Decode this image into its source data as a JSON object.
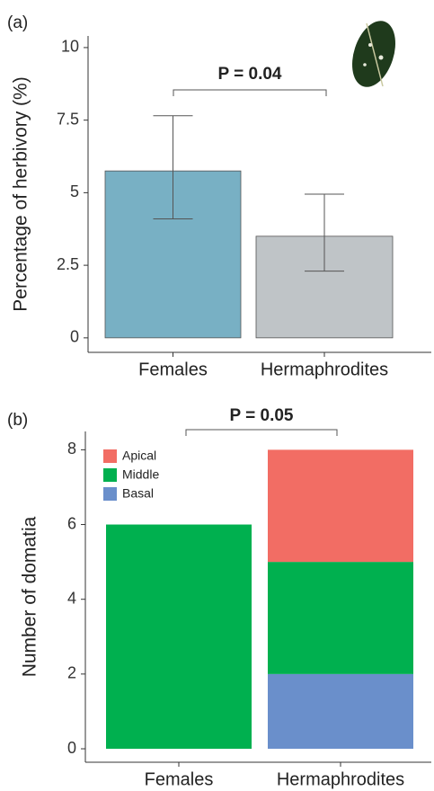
{
  "chart_data": [
    {
      "type": "bar",
      "panel_label": "(a)",
      "y_label": "Percentage of herbivory (%)",
      "categories": [
        "Females",
        "Hermaphrodites"
      ],
      "values": [
        5.75,
        3.5
      ],
      "ci_low": [
        4.1,
        2.3
      ],
      "ci_high": [
        7.65,
        4.95
      ],
      "colors": [
        "#78b0c4",
        "#bfc4c7"
      ],
      "ylim": [
        -0.5,
        10.4
      ],
      "yticks": [
        0,
        2.5,
        5,
        7.5,
        10
      ],
      "annotation": "P = 0.04"
    },
    {
      "type": "stacked_bar",
      "panel_label": "(b)",
      "y_label": "Number of domatia",
      "categories": [
        "Females",
        "Hermaphrodites"
      ],
      "series": [
        {
          "name": "Apical",
          "color": "#f26d64",
          "values": [
            0,
            3
          ]
        },
        {
          "name": "Middle",
          "color": "#00b04f",
          "values": [
            6,
            3
          ]
        },
        {
          "name": "Basal",
          "color": "#6a8fcb",
          "values": [
            0,
            2
          ]
        }
      ],
      "legend": "top-left",
      "ylim": [
        -0.36,
        8.49
      ],
      "yticks": [
        0,
        2,
        4,
        6,
        8
      ],
      "annotation": "P = 0.05"
    }
  ]
}
